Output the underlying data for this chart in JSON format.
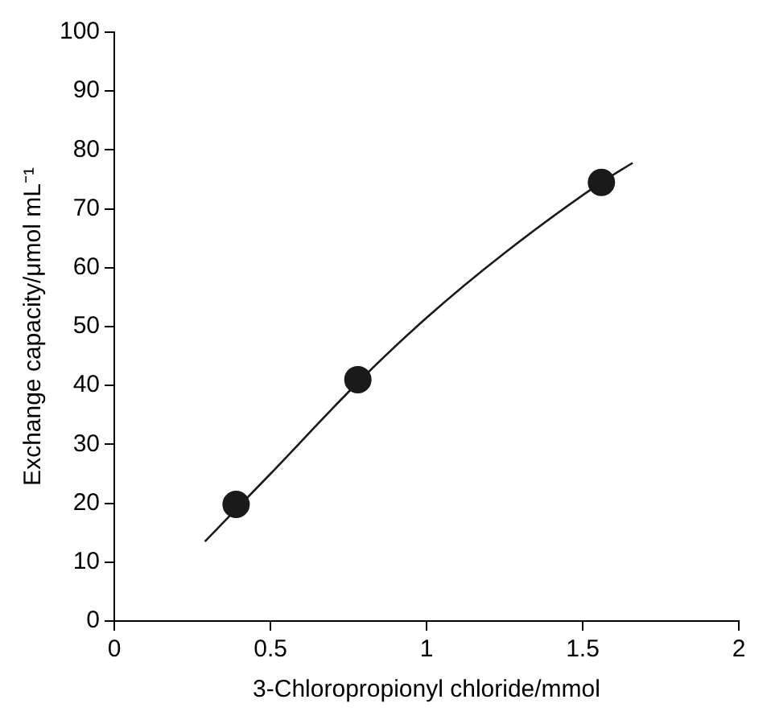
{
  "chart_data": {
    "type": "scatter",
    "xlabel": "3-Chloropropionyl chloride/mmol",
    "ylabel": "Exchange capacity/μmol mL⁻¹",
    "xlim": [
      0,
      2
    ],
    "xticks": [
      0,
      0.5,
      1,
      1.5,
      2
    ],
    "ylim": [
      0,
      100
    ],
    "yticks": [
      0,
      10,
      20,
      30,
      40,
      50,
      60,
      70,
      80,
      90,
      100
    ],
    "grid": false,
    "legend": false,
    "series": [
      {
        "color": "#1a1a1a",
        "marker": "circle",
        "x": [
          0.39,
          0.78,
          1.56
        ],
        "values": [
          19.8,
          41,
          74.5
        ]
      },
      {
        "type": "line",
        "color": "#1a1a1a",
        "marker": "none",
        "line_style": "solid",
        "x": [
          0.29,
          0.5,
          0.78,
          1.0,
          1.25,
          1.56,
          1.66
        ],
        "values": [
          13.5,
          25,
          40.5,
          51.5,
          62.5,
          74.5,
          77.8
        ]
      }
    ]
  }
}
